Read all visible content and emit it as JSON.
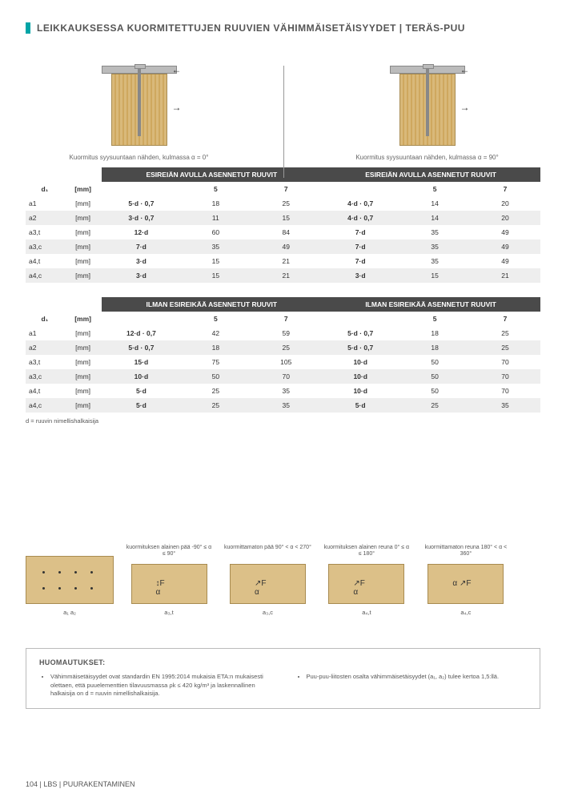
{
  "title": "LEIKKAUKSESSA KUORMITETTUJEN RUUVIEN VÄHIMMÄISETÄISYYDET | TERÄS-PUU",
  "caption_left": "Kuormitus syysuuntaan nähden, kulmassa α = 0°",
  "caption_right": "Kuormitus syysuuntaan nähden, kulmassa α = 90°",
  "headers": {
    "pilot": "ESIREIÄN AVULLA ASENNETUT RUUVIT",
    "nopilot": "ILMAN ESIREIKÄÄ ASENNETUT RUUVIT",
    "d1": "d₁",
    "d1_unit": "[mm]",
    "c5": "5",
    "c7": "7"
  },
  "rows": [
    {
      "k": "a1",
      "u": "[mm]"
    },
    {
      "k": "a2",
      "u": "[mm]"
    },
    {
      "k": "a3,t",
      "u": "[mm]"
    },
    {
      "k": "a3,c",
      "u": "[mm]"
    },
    {
      "k": "a4,t",
      "u": "[mm]"
    },
    {
      "k": "a4,c",
      "u": "[mm]"
    }
  ],
  "pilot": {
    "left": {
      "formula": [
        "5·d · 0,7",
        "3·d · 0,7",
        "12·d",
        "7·d",
        "3·d",
        "3·d"
      ],
      "v5": [
        "18",
        "11",
        "60",
        "35",
        "15",
        "15"
      ],
      "v7": [
        "25",
        "15",
        "84",
        "49",
        "21",
        "21"
      ]
    },
    "right": {
      "formula": [
        "4·d · 0,7",
        "4·d · 0,7",
        "7·d",
        "7·d",
        "7·d",
        "3·d"
      ],
      "v5": [
        "14",
        "14",
        "35",
        "35",
        "35",
        "15"
      ],
      "v7": [
        "20",
        "20",
        "49",
        "49",
        "49",
        "21"
      ]
    }
  },
  "nopilot": {
    "left": {
      "formula": [
        "12·d · 0,7",
        "5·d · 0,7",
        "15·d",
        "10·d",
        "5·d",
        "5·d"
      ],
      "v5": [
        "42",
        "18",
        "75",
        "50",
        "25",
        "25"
      ],
      "v7": [
        "59",
        "25",
        "105",
        "70",
        "35",
        "35"
      ]
    },
    "right": {
      "formula": [
        "5·d · 0,7",
        "5·d · 0,7",
        "10·d",
        "10·d",
        "10·d",
        "5·d"
      ],
      "v5": [
        "18",
        "18",
        "50",
        "50",
        "50",
        "25"
      ],
      "v7": [
        "25",
        "25",
        "70",
        "70",
        "70",
        "35"
      ]
    }
  },
  "d_note": "d = ruuvin nimellishalkaisija",
  "dia_captions": [
    "",
    "kuormituksen alainen pää\n-90° ≤ α ≤ 90°",
    "kuormittamaton pää\n90° < α < 270°",
    "kuormituksen alainen reuna\n0° ≤ α ≤ 180°",
    "kuormittamaton reuna\n180° < α < 360°"
  ],
  "dia_labels": [
    "a₁  a₂",
    "a₃,t",
    "a₃,c",
    "a₄,t",
    "a₄,c"
  ],
  "notes_title": "HUOMAUTUKSET:",
  "notes": [
    "Vähimmäisetäisyydet ovat standardin EN 1995:2014 mukaisia ETA:n mukaisesti olettaen, että puuelementtien tilavuusmassa ρk ≤ 420 kg/m³ ja laskennallinen halkaisija on d = ruuvin nimellishalkaisija.",
    "Puu-puu-liitosten osalta vähimmäisetäisyydet (a₁, a₂) tulee kertoa 1,5:llä."
  ],
  "footer": "104  |  LBS  |  PUURAKENTAMINEN"
}
